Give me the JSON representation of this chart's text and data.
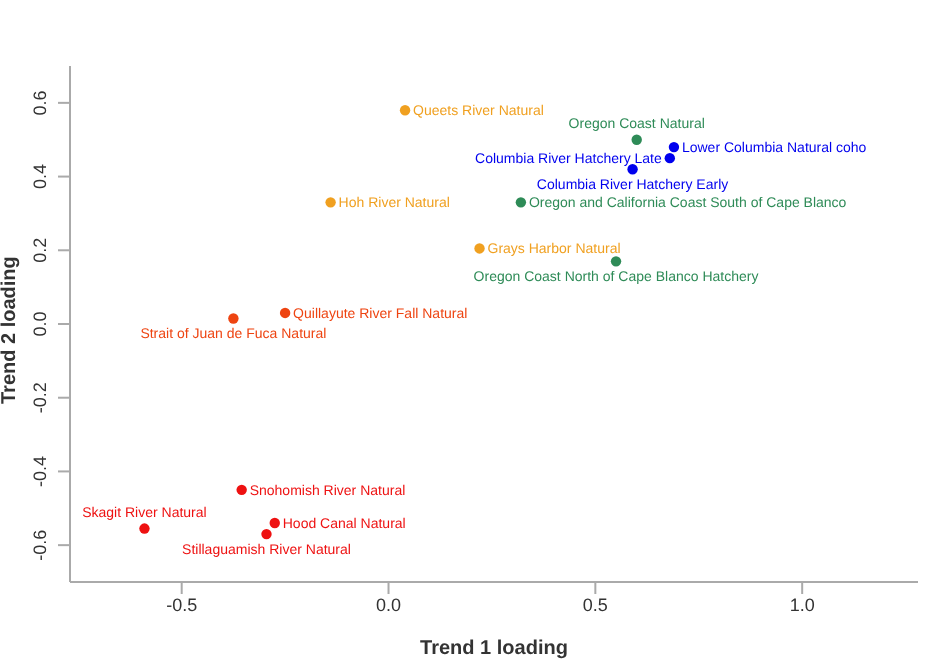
{
  "chart_data": {
    "type": "scatter",
    "xlabel": "Trend 1 loading",
    "ylabel": "Trend 2 loading",
    "xlim": [
      -0.77,
      1.28
    ],
    "ylim": [
      -0.7,
      0.7
    ],
    "xticks": [
      -0.5,
      {
        "value": 0,
        "label": "0.0"
      },
      0.5,
      {
        "value": 1,
        "label": "1.0"
      }
    ],
    "yticks": [
      -0.6,
      -0.4,
      -0.2,
      {
        "value": 0,
        "label": "0.0"
      },
      0.2,
      0.4,
      0.6
    ],
    "marker": "circle",
    "series": [
      {
        "color": "#ee1111",
        "x": [
          -0.355,
          -0.59,
          -0.275,
          -0.295
        ],
        "values": [
          -0.45,
          -0.555,
          -0.54,
          -0.57
        ]
      },
      {
        "color": "#ee4411",
        "x": [
          -0.25,
          -0.375
        ],
        "values": [
          0.03,
          0.015
        ]
      },
      {
        "color": "#f0a020",
        "x": [
          0.04,
          -0.14,
          0.22
        ],
        "values": [
          0.58,
          0.33,
          0.205
        ]
      },
      {
        "color": "#2e8b57",
        "x": [
          0.6,
          0.32,
          0.55
        ],
        "values": [
          0.5,
          0.33,
          0.17
        ]
      },
      {
        "color": "#0000ee",
        "x": [
          0.69,
          0.68,
          0.59
        ],
        "values": [
          0.48,
          0.45,
          0.42
        ]
      }
    ],
    "annotations": [
      {
        "text": "Snohomish River Natural",
        "x": -0.355,
        "y": -0.45
      },
      {
        "text": "Skagit River Natural",
        "x": -0.59,
        "y": -0.555
      },
      {
        "text": "Hood Canal Natural",
        "x": -0.275,
        "y": -0.54
      },
      {
        "text": "Stillaguamish River Natural",
        "x": -0.295,
        "y": -0.57
      },
      {
        "text": "Quillayute River Fall Natural",
        "x": -0.25,
        "y": 0.03
      },
      {
        "text": "Strait of Juan de Fuca Natural",
        "x": -0.375,
        "y": 0.015
      },
      {
        "text": "Queets River Natural",
        "x": 0.04,
        "y": 0.58
      },
      {
        "text": "Hoh River Natural",
        "x": -0.14,
        "y": 0.33
      },
      {
        "text": "Grays Harbor Natural",
        "x": 0.22,
        "y": 0.205
      },
      {
        "text": "Oregon Coast Natural",
        "x": 0.6,
        "y": 0.5
      },
      {
        "text": "Oregon and California Coast South of Cape Blanco",
        "x": 0.32,
        "y": 0.33
      },
      {
        "text": "Oregon Coast North of Cape Blanco Hatchery",
        "x": 0.55,
        "y": 0.17
      },
      {
        "text": "Lower Columbia Natural coho",
        "x": 0.69,
        "y": 0.48
      },
      {
        "text": "Columbia River Hatchery Late",
        "x": 0.68,
        "y": 0.45
      },
      {
        "text": "Columbia River Hatchery Early",
        "x": 0.59,
        "y": 0.42
      }
    ]
  }
}
